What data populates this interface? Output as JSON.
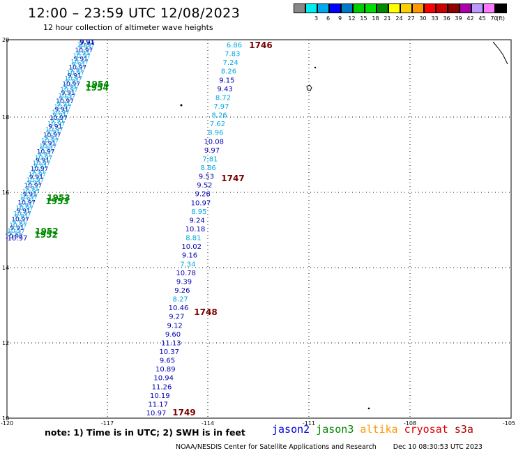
{
  "header": {
    "title": "12:00 – 23:59 UTC 12/08/2023",
    "subtitle": "12 hour collection of altimeter wave heights"
  },
  "legend": {
    "unit_label": "(ft)",
    "bins": [
      {
        "label": "",
        "color": "#888888"
      },
      {
        "label": "3",
        "color": "#00eeee"
      },
      {
        "label": "6",
        "color": "#00a8f0"
      },
      {
        "label": "9",
        "color": "#0000ff"
      },
      {
        "label": "12",
        "color": "#0078c8"
      },
      {
        "label": "15",
        "color": "#00cc00"
      },
      {
        "label": "18",
        "color": "#00dd00"
      },
      {
        "label": "21",
        "color": "#008800"
      },
      {
        "label": "24",
        "color": "#ffff00"
      },
      {
        "label": "27",
        "color": "#ffd000"
      },
      {
        "label": "30",
        "color": "#ff9900"
      },
      {
        "label": "33",
        "color": "#ff0000"
      },
      {
        "label": "36",
        "color": "#cc0000"
      },
      {
        "label": "39",
        "color": "#8b0000"
      },
      {
        "label": "42",
        "color": "#aa00aa"
      },
      {
        "label": "45",
        "color": "#bb99ff"
      },
      {
        "label": "70",
        "color": "#ff77ff"
      },
      {
        "label": "",
        "color": "#000000"
      }
    ]
  },
  "map": {
    "lon_ticks": [
      "-120",
      "-117",
      "-114",
      "-111",
      "-108",
      "-105"
    ],
    "lat_ticks": [
      "10",
      "12",
      "14",
      "16",
      "18",
      "20"
    ],
    "colors": {
      "low": "#00a8e0",
      "mid": "#0000b4",
      "time": "#7a0000",
      "time_green": "#008800"
    },
    "main_track": [
      {
        "v": "6.86",
        "c": "low"
      },
      {
        "v": "7.83",
        "c": "low"
      },
      {
        "v": "7.24",
        "c": "low"
      },
      {
        "v": "8.26",
        "c": "low"
      },
      {
        "v": "9.15",
        "c": "mid"
      },
      {
        "v": "9.43",
        "c": "mid"
      },
      {
        "v": "8.72",
        "c": "low"
      },
      {
        "v": "7.97",
        "c": "low"
      },
      {
        "v": "8.26",
        "c": "low"
      },
      {
        "v": "7.62",
        "c": "low"
      },
      {
        "v": "8.96",
        "c": "low"
      },
      {
        "v": "10.08",
        "c": "mid"
      },
      {
        "v": "9.97",
        "c": "mid"
      },
      {
        "v": "7.81",
        "c": "low"
      },
      {
        "v": "8.86",
        "c": "low"
      },
      {
        "v": "9.53",
        "c": "mid"
      },
      {
        "v": "9.52",
        "c": "mid"
      },
      {
        "v": "9.26",
        "c": "mid"
      },
      {
        "v": "10.97",
        "c": "mid"
      },
      {
        "v": "8.95",
        "c": "low"
      },
      {
        "v": "9.24",
        "c": "mid"
      },
      {
        "v": "10.18",
        "c": "mid"
      },
      {
        "v": "8.81",
        "c": "low"
      },
      {
        "v": "10.02",
        "c": "mid"
      },
      {
        "v": "9.16",
        "c": "mid"
      },
      {
        "v": "7.34",
        "c": "low"
      },
      {
        "v": "10.78",
        "c": "mid"
      },
      {
        "v": "9.39",
        "c": "mid"
      },
      {
        "v": "9.26",
        "c": "mid"
      },
      {
        "v": "8.27",
        "c": "low"
      },
      {
        "v": "10.46",
        "c": "mid"
      },
      {
        "v": "9.27",
        "c": "mid"
      },
      {
        "v": "9.12",
        "c": "mid"
      },
      {
        "v": "9.60",
        "c": "mid"
      },
      {
        "v": "11.13",
        "c": "mid"
      },
      {
        "v": "10.37",
        "c": "mid"
      },
      {
        "v": "9.65",
        "c": "mid"
      },
      {
        "v": "10.89",
        "c": "mid"
      },
      {
        "v": "10.94",
        "c": "mid"
      },
      {
        "v": "11.26",
        "c": "mid"
      },
      {
        "v": "10.19",
        "c": "mid"
      },
      {
        "v": "11.17",
        "c": "mid"
      },
      {
        "v": "10.97",
        "c": "mid"
      }
    ],
    "time_labels": [
      {
        "t": "1746",
        "c": "time"
      },
      {
        "t": "1747",
        "c": "time"
      },
      {
        "t": "1748",
        "c": "time"
      },
      {
        "t": "1749",
        "c": "time"
      },
      {
        "t": "1954",
        "c": "time_green"
      },
      {
        "t": "1953",
        "c": "time_green"
      },
      {
        "t": "1952",
        "c": "time_green"
      }
    ],
    "west_track": {
      "first_value": "9.91",
      "last_value": "10.97",
      "pair_labels": [
        "1954",
        "1953",
        "1952"
      ]
    }
  },
  "note": "note: 1) Time is in UTC; 2) SWH is in feet",
  "satellites": [
    {
      "name": "jason2",
      "color": "#0000dd"
    },
    {
      "name": "jason3",
      "color": "#008800"
    },
    {
      "name": "altika",
      "color": "#ff9900"
    },
    {
      "name": "cryosat",
      "color": "#dd0000"
    },
    {
      "name": "s3a",
      "color": "#aa0000"
    }
  ],
  "footer": {
    "org": "NOAA/NESDIS Center for Satellite Applications and Research",
    "timestamp": "Dec 10 08:30:53 UTC 2023"
  }
}
